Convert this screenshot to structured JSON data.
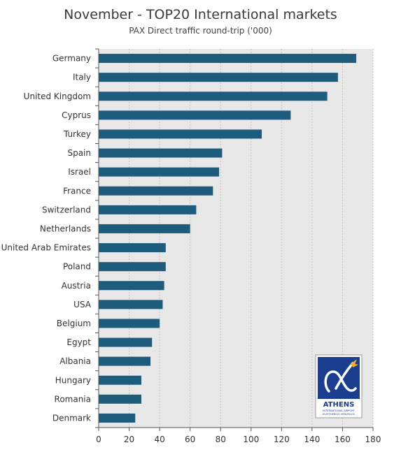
{
  "chart_data": {
    "type": "bar",
    "orientation": "horizontal",
    "title": "November - TOP20 International markets",
    "subtitle": "PAX Direct traffic round-trip ('000)",
    "categories": [
      "Germany",
      "Italy",
      "United Kingdom",
      "Cyprus",
      "Turkey",
      "Spain",
      "Israel",
      "France",
      "Switzerland",
      "Netherlands",
      "United Arab Emirates",
      "Poland",
      "Austria",
      "USA",
      "Belgium",
      "Egypt",
      "Albania",
      "Hungary",
      "Romania",
      "Denmark"
    ],
    "values": [
      169,
      157,
      150,
      126,
      107,
      81,
      79,
      75,
      64,
      60,
      44,
      44,
      43,
      42,
      40,
      35,
      34,
      28,
      28,
      24
    ],
    "xlim": [
      0,
      180
    ],
    "xticks": [
      0,
      20,
      40,
      60,
      80,
      100,
      120,
      140,
      160,
      180
    ],
    "grid": true,
    "colors": {
      "bar": "#1e5c7e",
      "plot_bg": "#e8e8e8",
      "grid": "#c4c4c4"
    }
  },
  "logo": {
    "name": "ATHENS",
    "line1": "INTERNATIONAL AIRPORT",
    "line2": "ELEFTHERIOS VENIZELOS",
    "colors": {
      "bg": "#1a3d8f",
      "accent": "#f2b21b"
    }
  }
}
